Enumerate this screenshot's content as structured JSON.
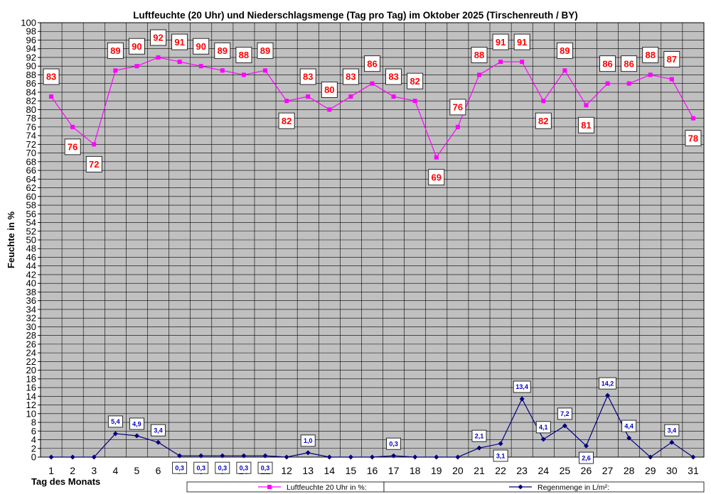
{
  "chart_data": {
    "type": "line",
    "title": "Luftfeuchte (20 Uhr) und Niederschlagsmenge (Tag pro Tag) im Oktober 2025 (Tirschenreuth / BY)",
    "xlabel": "Tag des Monats",
    "ylabel": "Feuchte in %",
    "ylim": [
      0,
      100
    ],
    "ytick_step": 2,
    "grid": true,
    "legend_position": "bottom",
    "categories": [
      "1",
      "2",
      "3",
      "4",
      "5",
      "6",
      "7",
      "8",
      "9",
      "10",
      "11",
      "12",
      "13",
      "14",
      "15",
      "16",
      "17",
      "18",
      "19",
      "20",
      "21",
      "22",
      "23",
      "24",
      "25",
      "26",
      "27",
      "28",
      "29",
      "30",
      "31"
    ],
    "series": [
      {
        "name": "Luftfeuchte 20 Uhr in %:",
        "color": "#ff00ff",
        "label_color": "#ff0000",
        "marker": "square",
        "values": [
          83,
          76,
          72,
          89,
          90,
          92,
          91,
          90,
          89,
          88,
          89,
          82,
          83,
          80,
          83,
          86,
          83,
          82,
          69,
          76,
          88,
          91,
          91,
          82,
          89,
          81,
          86,
          86,
          88,
          87,
          78
        ],
        "labels": [
          "83",
          "76",
          "72",
          "89",
          "90",
          "92",
          "91",
          "90",
          "89",
          "88",
          "89",
          "82",
          "83",
          "80",
          "83",
          "86",
          "83",
          "82",
          "69",
          "76",
          "88",
          "91",
          "91",
          "82",
          "89",
          "81",
          "86",
          "86",
          "88",
          "87",
          "78"
        ]
      },
      {
        "name": "Regenmenge in L/m²:",
        "color": "#000080",
        "label_color": "#0000cc",
        "marker": "diamond",
        "values": [
          0,
          0,
          0,
          5.4,
          4.9,
          3.4,
          0.3,
          0.3,
          0.3,
          0.3,
          0.3,
          0,
          1.0,
          0,
          0,
          0,
          0.3,
          0,
          0,
          0,
          2.1,
          3.1,
          13.4,
          4.1,
          7.2,
          2.6,
          14.2,
          4.4,
          0,
          3.4,
          0
        ],
        "labels": [
          "",
          "",
          "",
          "5,4",
          "4,9",
          "3,4",
          "0,3",
          "0,3",
          "0,3",
          "0,3",
          "0,3",
          "",
          "1,0",
          "",
          "",
          "",
          "0,3",
          "",
          "",
          "",
          "2,1",
          "3,1",
          "13,4",
          "4,1",
          "7,2",
          "2,6",
          "14,2",
          "4,4",
          "",
          "3,4",
          ""
        ]
      }
    ]
  }
}
